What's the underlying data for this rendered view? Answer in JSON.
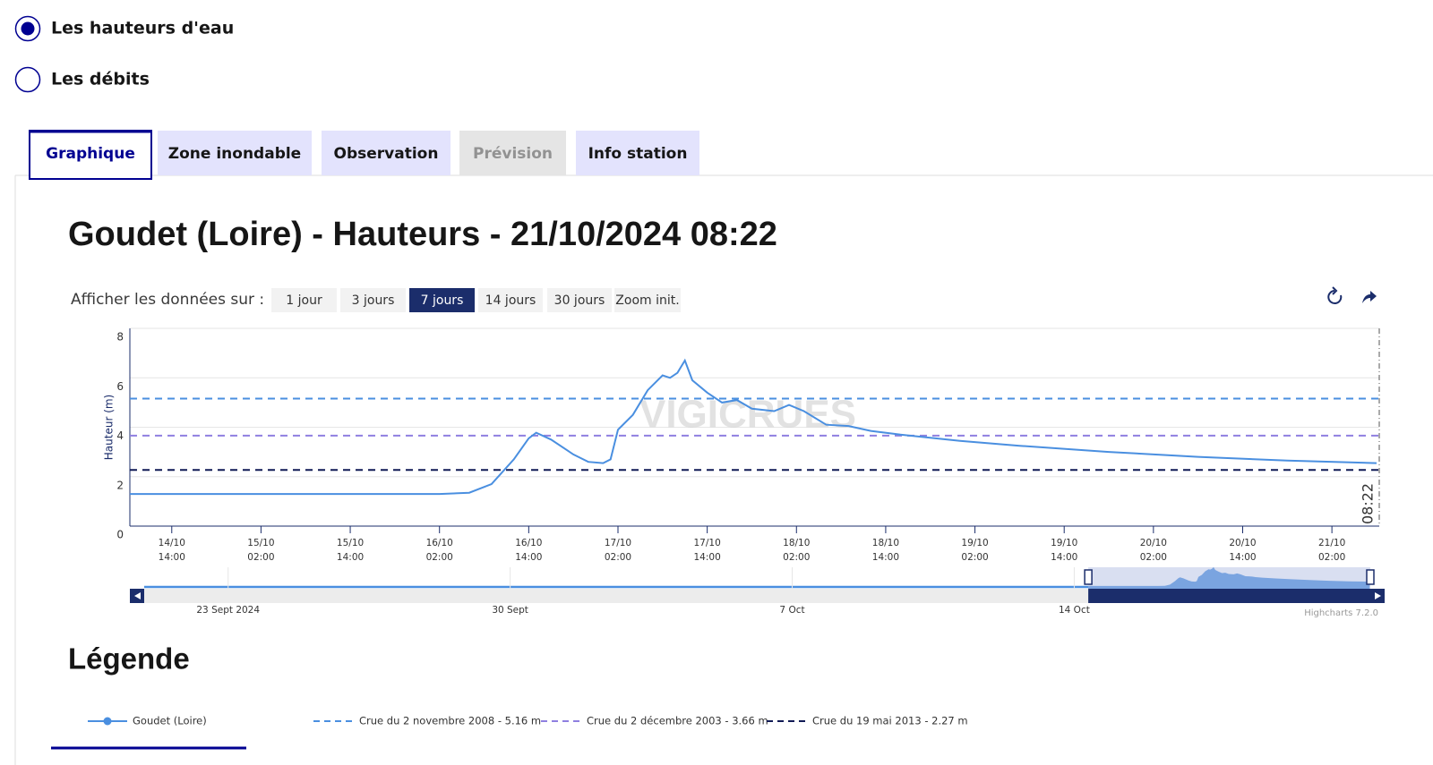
{
  "radios": [
    {
      "label": "Les hauteurs d'eau",
      "checked": true
    },
    {
      "label": "Les débits",
      "checked": false
    }
  ],
  "tabs": [
    {
      "label": "Graphique",
      "state": "active"
    },
    {
      "label": "Zone inondable",
      "state": "normal"
    },
    {
      "label": "Observation",
      "state": "normal"
    },
    {
      "label": "Prévision",
      "state": "disabled"
    },
    {
      "label": "Info station",
      "state": "normal"
    }
  ],
  "chart_data": {
    "type": "line",
    "title": "Goudet (Loire) - Hauteurs - 21/10/2024 08:22",
    "range_label": "Afficher les données sur :",
    "range_buttons": [
      "1 jour",
      "3 jours",
      "7 jours",
      "14 jours",
      "30 jours",
      "Zoom init."
    ],
    "range_selected": 2,
    "y_label": "Hauteur (m)",
    "ylim": [
      0,
      8
    ],
    "yticks": [
      0,
      2,
      4,
      6,
      8
    ],
    "grid": true,
    "xlim": [
      "2024-10-14 08:22",
      "2024-10-21 08:22"
    ],
    "xticks": [
      {
        "value": "2024-10-14 14:00",
        "label": [
          "14/10",
          "14:00"
        ]
      },
      {
        "value": "2024-10-15 02:00",
        "label": [
          "15/10",
          "02:00"
        ]
      },
      {
        "value": "2024-10-15 14:00",
        "label": [
          "15/10",
          "14:00"
        ]
      },
      {
        "value": "2024-10-16 02:00",
        "label": [
          "16/10",
          "02:00"
        ]
      },
      {
        "value": "2024-10-16 14:00",
        "label": [
          "16/10",
          "14:00"
        ]
      },
      {
        "value": "2024-10-17 02:00",
        "label": [
          "17/10",
          "02:00"
        ]
      },
      {
        "value": "2024-10-17 14:00",
        "label": [
          "17/10",
          "14:00"
        ]
      },
      {
        "value": "2024-10-18 02:00",
        "label": [
          "18/10",
          "02:00"
        ]
      },
      {
        "value": "2024-10-18 14:00",
        "label": [
          "18/10",
          "14:00"
        ]
      },
      {
        "value": "2024-10-19 02:00",
        "label": [
          "19/10",
          "02:00"
        ]
      },
      {
        "value": "2024-10-19 14:00",
        "label": [
          "19/10",
          "14:00"
        ]
      },
      {
        "value": "2024-10-20 02:00",
        "label": [
          "20/10",
          "02:00"
        ]
      },
      {
        "value": "2024-10-20 14:00",
        "label": [
          "20/10",
          "14:00"
        ]
      },
      {
        "value": "2024-10-21 02:00",
        "label": [
          "21/10",
          "02:00"
        ]
      }
    ],
    "series": [
      {
        "name": "Goudet (Loire)",
        "color": "#4a8fe0",
        "x": [
          "2024-10-14 08:22",
          "2024-10-16 02:00",
          "2024-10-16 06:00",
          "2024-10-16 09:00",
          "2024-10-16 12:00",
          "2024-10-16 14:00",
          "2024-10-16 15:00",
          "2024-10-16 17:00",
          "2024-10-16 20:00",
          "2024-10-16 22:00",
          "2024-10-17 00:00",
          "2024-10-17 01:00",
          "2024-10-17 02:00",
          "2024-10-17 04:00",
          "2024-10-17 06:00",
          "2024-10-17 08:00",
          "2024-10-17 09:00",
          "2024-10-17 10:00",
          "2024-10-17 11:00",
          "2024-10-17 12:00",
          "2024-10-17 14:00",
          "2024-10-17 16:00",
          "2024-10-17 18:00",
          "2024-10-17 20:00",
          "2024-10-17 23:00",
          "2024-10-18 01:00",
          "2024-10-18 03:00",
          "2024-10-18 06:00",
          "2024-10-18 09:00",
          "2024-10-18 12:00",
          "2024-10-18 16:00",
          "2024-10-19 00:00",
          "2024-10-19 08:00",
          "2024-10-19 20:00",
          "2024-10-20 08:00",
          "2024-10-20 20:00",
          "2024-10-21 08:00"
        ],
        "values": [
          1.3,
          1.3,
          1.35,
          1.7,
          2.7,
          3.55,
          3.78,
          3.5,
          2.9,
          2.6,
          2.55,
          2.7,
          3.9,
          4.5,
          5.5,
          6.1,
          6.0,
          6.2,
          6.7,
          5.9,
          5.4,
          5.0,
          5.1,
          4.75,
          4.65,
          4.9,
          4.65,
          4.1,
          4.05,
          3.85,
          3.7,
          3.45,
          3.25,
          3.0,
          2.8,
          2.65,
          2.55
        ]
      }
    ],
    "thresholds": [
      {
        "name": "Crue du 2 novembre 2008 - 5.16 m",
        "value": 5.16,
        "color": "#4a8fe0"
      },
      {
        "name": "Crue du 2 décembre 2003 - 3.66 m",
        "value": 3.66,
        "color": "#8f7fe0"
      },
      {
        "name": "Crue du 19 mai 2013 - 2.27 m",
        "value": 2.27,
        "color": "#101a55"
      }
    ],
    "now_line": {
      "x": "2024-10-21 08:22",
      "label": "08:22"
    },
    "watermark": "VIGICRUES",
    "navigator": {
      "xlim": [
        "2024-09-20 22:00",
        "2024-10-21 08:22"
      ],
      "labels": [
        {
          "value": "2024-09-23",
          "label": "23 Sept 2024"
        },
        {
          "value": "2024-09-30",
          "label": "30 Sept"
        },
        {
          "value": "2024-10-07",
          "label": "7 Oct"
        },
        {
          "value": "2024-10-14",
          "label": "14 Oct"
        }
      ]
    },
    "credits": "Highcharts 7.2.0",
    "legend_title": "Légende"
  }
}
